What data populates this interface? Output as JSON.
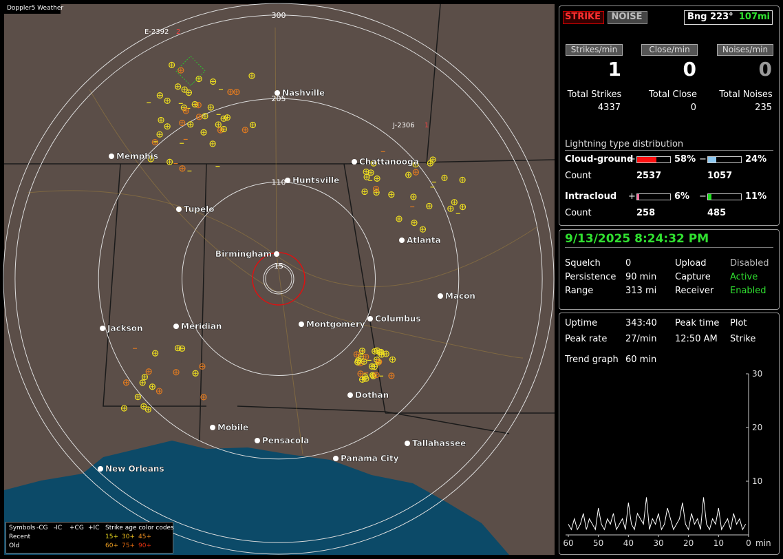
{
  "map": {
    "badge": "Doppler5 Weather",
    "rings": [
      300,
      205,
      110,
      15
    ],
    "cities": [
      "Nashville",
      "Memphis",
      "Chattanooga",
      "Huntsville",
      "Tupelo",
      "Atlanta",
      "Birmingham",
      "Macon",
      "Columbus",
      "Montgomery",
      "Meridian",
      "Jackson",
      "Dothan",
      "Mobile",
      "Pensacola",
      "Tallahassee",
      "Panama City",
      "New Orleans"
    ],
    "storms": [
      {
        "id": "E-2392",
        "count": "2"
      },
      {
        "id": "J-2306",
        "count": "1"
      }
    ],
    "legend": {
      "head": [
        "Symbols",
        "-CG",
        "-IC",
        "+CG",
        "+IC",
        "Strike age color codes"
      ],
      "rows": [
        "Recent",
        "Old"
      ],
      "ages": [
        [
          "15+",
          "30+",
          "45+"
        ],
        [
          "60+",
          "75+",
          "90+"
        ]
      ]
    }
  },
  "panel": {
    "modes": [
      "STRIKE",
      "NOISE"
    ],
    "bearing": "Bng 223°",
    "distance": "107mi",
    "rates": {
      "labels": [
        "Strikes/min",
        "Close/min",
        "Noises/min"
      ],
      "values": [
        1,
        0,
        0
      ]
    },
    "totals": {
      "labels": [
        "Total Strikes",
        "Total Close",
        "Total Noises"
      ],
      "values": [
        4337,
        0,
        235
      ]
    },
    "distribution": {
      "title": "Lightning type distribution",
      "rows": [
        {
          "name": "Cloud-ground",
          "signs": [
            "+",
            "−"
          ],
          "values": [
            58,
            24
          ],
          "value_labels": [
            "58%",
            "24%"
          ],
          "colors": [
            "#ff1010",
            "#8ec8f0"
          ],
          "count_label": "Count",
          "counts": [
            2537,
            1057
          ]
        },
        {
          "name": "Intracloud",
          "signs": [
            "+",
            "−"
          ],
          "values": [
            6,
            11
          ],
          "value_labels": [
            "6%",
            "11%"
          ],
          "colors": [
            "#ff6fa0",
            "#20e020"
          ],
          "count_label": "Count",
          "counts": [
            258,
            485
          ]
        }
      ]
    },
    "status": {
      "datetime": "9/13/2025 8:24:32 PM",
      "rows": [
        [
          "Squelch",
          0,
          "Upload",
          "Disabled"
        ],
        [
          "Persistence",
          "90 min",
          "Capture",
          "Active"
        ],
        [
          "Range",
          "313 mi",
          "Receiver",
          "Enabled"
        ]
      ]
    },
    "stats": {
      "rows": [
        [
          "Uptime",
          "343:40",
          "Peak time",
          "Plot"
        ],
        [
          "Peak rate",
          "27/min",
          "12:50 AM",
          "Strike"
        ]
      ],
      "trend_label": "Trend graph",
      "trend_span": "60 min"
    }
  },
  "chart_data": {
    "type": "line",
    "ylim": [
      0,
      30
    ],
    "yticks": [
      10,
      20,
      30
    ],
    "xlim": [
      60,
      0
    ],
    "xticks": [
      60,
      50,
      40,
      30,
      20,
      10,
      0
    ],
    "x_unit": "min",
    "x": [
      60,
      59,
      58,
      57,
      56,
      55,
      54,
      53,
      52,
      51,
      50,
      49,
      48,
      47,
      46,
      45,
      44,
      43,
      42,
      41,
      40,
      39,
      38,
      37,
      36,
      35,
      34,
      33,
      32,
      31,
      30,
      29,
      28,
      27,
      26,
      25,
      24,
      23,
      22,
      21,
      20,
      19,
      18,
      17,
      16,
      15,
      14,
      13,
      12,
      11,
      10,
      9,
      8,
      7,
      6,
      5,
      4,
      3,
      2,
      1
    ],
    "series": [
      {
        "color": "#ffffff",
        "values": [
          2,
          1,
          3,
          1,
          2,
          4,
          1,
          3,
          2,
          1,
          5,
          2,
          1,
          3,
          2,
          4,
          1,
          2,
          3,
          1,
          6,
          2,
          1,
          4,
          3,
          2,
          7,
          1,
          3,
          2,
          4,
          1,
          2,
          5,
          3,
          1,
          2,
          3,
          6,
          2,
          1,
          4,
          2,
          3,
          1,
          7,
          2,
          1,
          3,
          2,
          5,
          1,
          2,
          3,
          1,
          4,
          2,
          3,
          1,
          2
        ]
      }
    ]
  }
}
